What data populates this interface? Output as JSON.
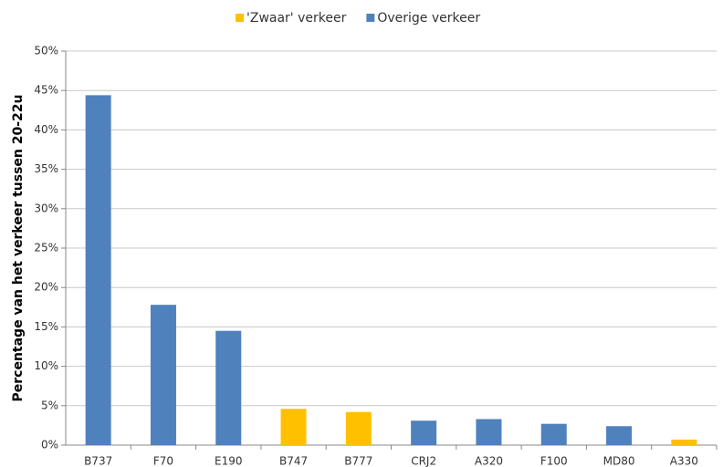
{
  "chart_data": {
    "type": "bar",
    "y_label": "Percentage van het verkeer tussen 20-22u",
    "categories": [
      "B737",
      "F70",
      "E190",
      "B747",
      "B777",
      "CRJ2",
      "A320",
      "F100",
      "MD80",
      "A330"
    ],
    "series": [
      {
        "name": "'Zwaar' verkeer",
        "color": "#FFC000",
        "values": [
          null,
          null,
          null,
          4.6,
          4.2,
          null,
          null,
          null,
          null,
          0.7
        ]
      },
      {
        "name": "Overige verkeer",
        "color": "#4F81BD",
        "values": [
          44.4,
          17.8,
          14.5,
          null,
          null,
          3.1,
          3.3,
          2.7,
          2.4,
          null
        ]
      }
    ],
    "ylim": [
      0,
      50
    ],
    "yticks": [
      {
        "value": 0,
        "label": "0%"
      },
      {
        "value": 5,
        "label": "5%"
      },
      {
        "value": 10,
        "label": "10%"
      },
      {
        "value": 15,
        "label": "15%"
      },
      {
        "value": 20,
        "label": "20%"
      },
      {
        "value": 25,
        "label": "25%"
      },
      {
        "value": 30,
        "label": "30%"
      },
      {
        "value": 35,
        "label": "35%"
      },
      {
        "value": 40,
        "label": "40%"
      },
      {
        "value": 45,
        "label": "45%"
      },
      {
        "value": 50,
        "label": "50%"
      }
    ],
    "grid": true,
    "legend": "top"
  }
}
